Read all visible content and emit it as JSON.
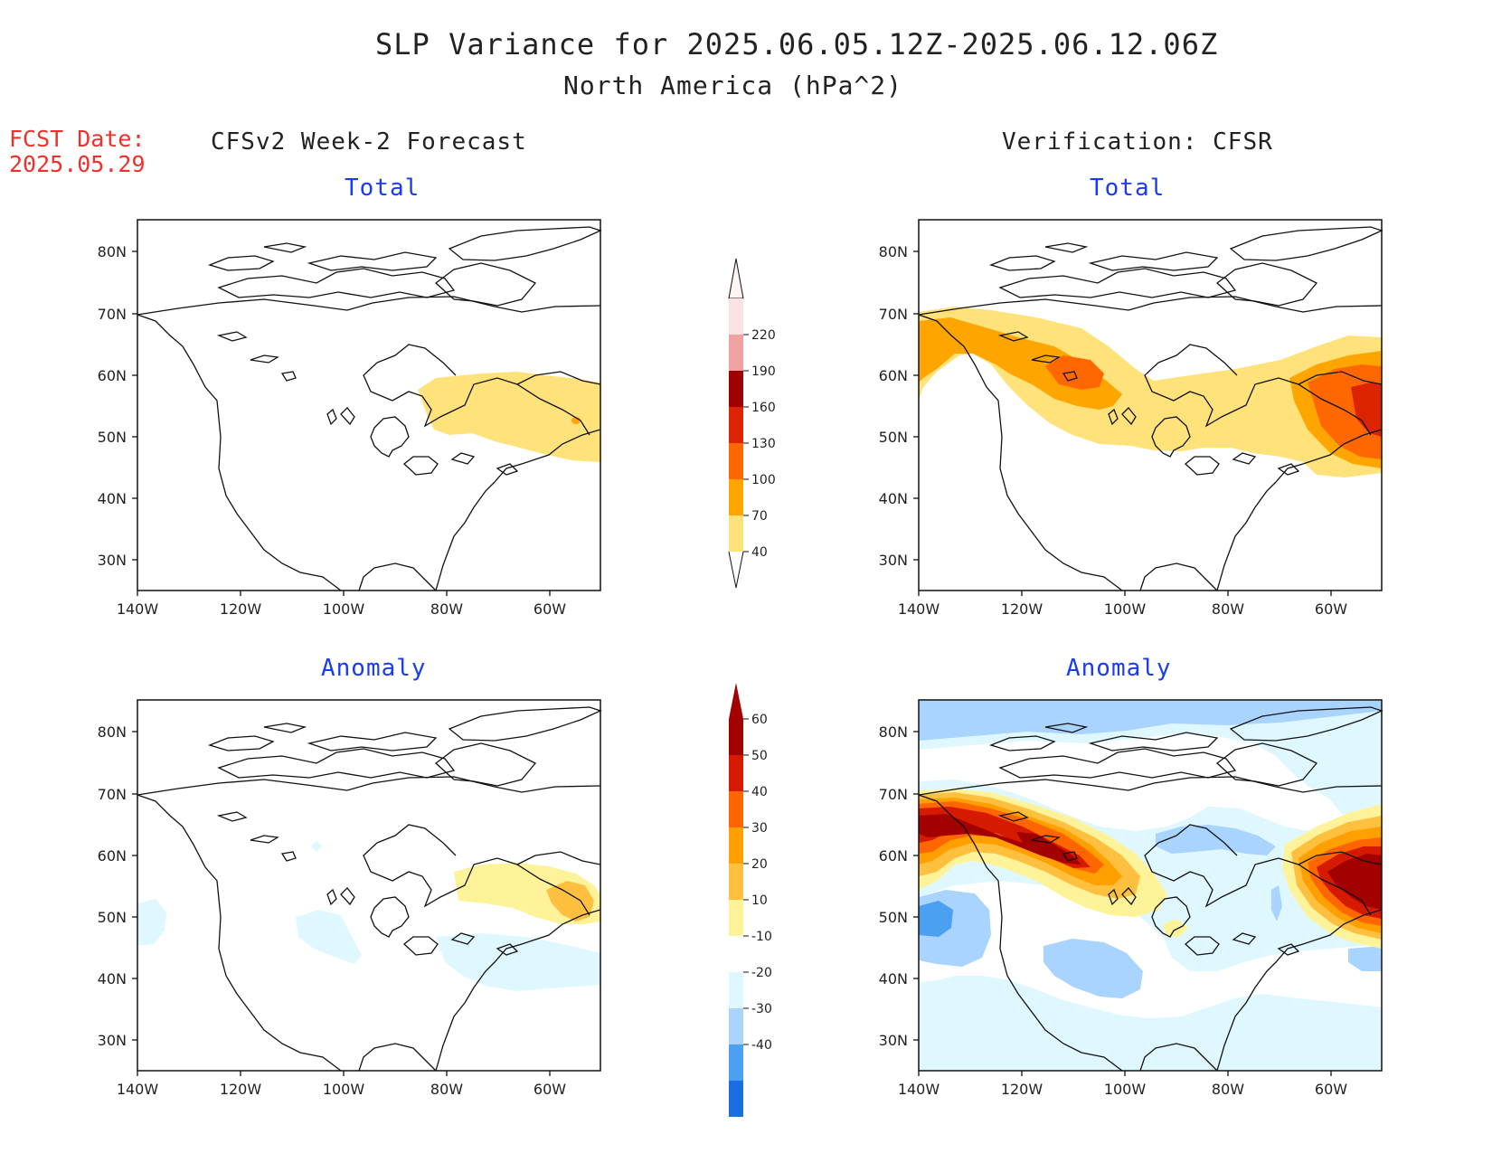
{
  "header": {
    "title": "SLP Variance for 2025.06.05.12Z-2025.06.12.06Z",
    "subtitle": "North America (hPa^2)",
    "fcst_label": "FCST Date:",
    "fcst_date": "2025.05.29",
    "left_column": "CFSv2 Week-2 Forecast",
    "right_column": "Verification: CFSR"
  },
  "panels": {
    "tl": {
      "title": "Total"
    },
    "tr": {
      "title": "Total"
    },
    "bl": {
      "title": "Anomaly"
    },
    "br": {
      "title": "Anomaly"
    }
  },
  "axes": {
    "lat_labels": [
      "80N",
      "70N",
      "60N",
      "50N",
      "40N",
      "30N"
    ],
    "lon_labels": [
      "140W",
      "120W",
      "100W",
      "80W",
      "60W"
    ]
  },
  "legend_total": {
    "labels": [
      "220",
      "190",
      "160",
      "130",
      "100",
      "70",
      "40"
    ],
    "colors": [
      "#fbe3e3",
      "#f2a1a1",
      "#a00000",
      "#dd2400",
      "#ff6800",
      "#ffa500",
      "#ffe27a"
    ]
  },
  "legend_anom": {
    "labels": [
      "60",
      "50",
      "40",
      "30",
      "20",
      "10",
      "-10",
      "-20",
      "-30",
      "-40"
    ],
    "colors": [
      "#a30000",
      "#d61a00",
      "#ff6600",
      "#ff9f00",
      "#ffc040",
      "#fff39a",
      "#ffffff",
      "#dff8ff",
      "#a8d4ff",
      "#4ca0f2",
      "#1a6ee0"
    ]
  },
  "colors": {
    "title_blue": "#1a3cf0",
    "fcst_red": "#f0302a"
  }
}
